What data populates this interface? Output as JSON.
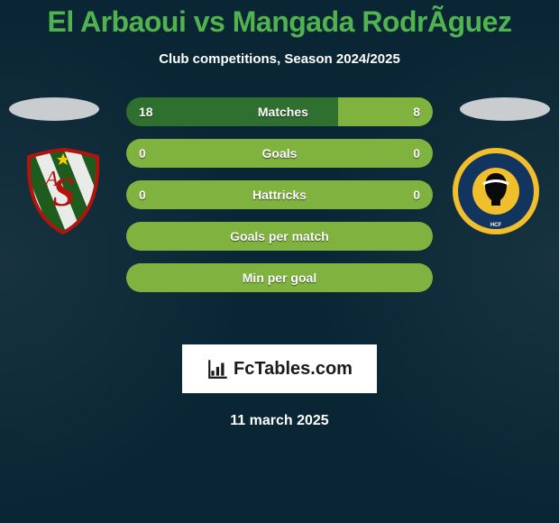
{
  "title": {
    "text": "El Arbaoui vs Mangada RodrÃ­guez",
    "color": "#4fb34f"
  },
  "subtitle": "Club competitions, Season 2024/2025",
  "date_line": "11 march 2025",
  "ellipse_color": "#c9cdd0",
  "colors": {
    "left_main": "#2f6f2f",
    "left_alt": "#7a0f0f",
    "right_main": "#7fb23f",
    "neutral": "#7fb23f"
  },
  "bars": [
    {
      "left": "18",
      "center": "Matches",
      "right": "8",
      "segL_pct": 69,
      "segR_pct": 31,
      "segL_color": "#2f6f2f",
      "segR_color": "#7fb23f"
    },
    {
      "left": "0",
      "center": "Goals",
      "right": "0",
      "segL_pct": 100,
      "segR_pct": 0,
      "segL_color": "#7fb23f",
      "segR_color": "#7fb23f"
    },
    {
      "left": "0",
      "center": "Hattricks",
      "right": "0",
      "segL_pct": 100,
      "segR_pct": 0,
      "segL_color": "#7fb23f",
      "segR_color": "#7fb23f"
    },
    {
      "left": "",
      "center": "Goals per match",
      "right": "",
      "segL_pct": 100,
      "segR_pct": 0,
      "segL_color": "#7fb23f",
      "segR_color": "#7fb23f"
    },
    {
      "left": "",
      "center": "Min per goal",
      "right": "",
      "segL_pct": 100,
      "segR_pct": 0,
      "segL_color": "#7fb23f",
      "segR_color": "#7fb23f"
    }
  ],
  "brand": {
    "icon_color": "#1a1a1a",
    "text": "FcTables.com"
  },
  "badge_left": {
    "bg": "#ffffff",
    "stripe_a": "#1e5c1e",
    "stripe_b": "#e8ebe8",
    "trim": "#b0140f",
    "letter": "#b0140f",
    "star": "#ffcc00"
  },
  "badge_right": {
    "ring_outer": "#f2bf2c",
    "ring_inner": "#11355e",
    "center": "#f2bf2c",
    "profile": "#0a0a0a",
    "band": "#ffffff"
  }
}
